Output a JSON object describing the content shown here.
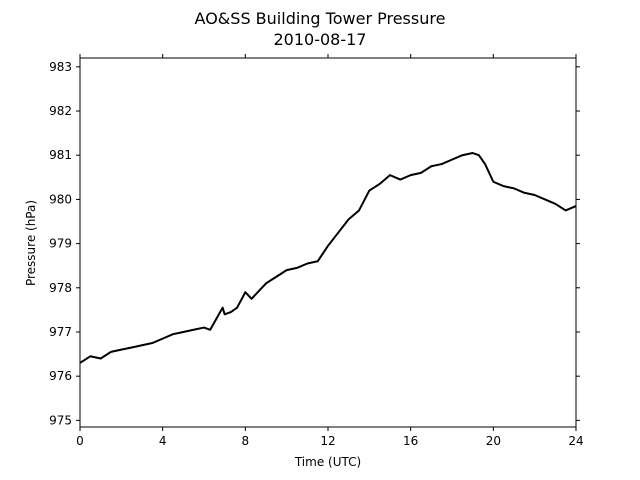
{
  "chart_data": {
    "type": "line",
    "title": "AO&SS Building Tower Pressure",
    "subtitle": "2010-08-17",
    "xlabel": "Time (UTC)",
    "ylabel": "Pressure (hPa)",
    "xlim": [
      0,
      24
    ],
    "ylim": [
      974.85,
      983.2
    ],
    "xticks": [
      0,
      4,
      8,
      12,
      16,
      20,
      24
    ],
    "yticks": [
      975,
      976,
      977,
      978,
      979,
      980,
      981,
      982,
      983
    ],
    "grid": false,
    "line_color": "#000000",
    "series": [
      {
        "x": [
          0,
          0.5,
          1,
          1.5,
          2,
          2.5,
          3,
          3.5,
          4,
          4.5,
          5,
          5.5,
          6,
          6.3,
          6.6,
          6.9,
          7,
          7.3,
          7.6,
          8,
          8.3,
          8.6,
          9,
          9.5,
          10,
          10.5,
          11,
          11.5,
          12,
          12.5,
          13,
          13.5,
          14,
          14.5,
          15,
          15.5,
          16,
          16.5,
          17,
          17.5,
          18,
          18.5,
          19,
          19.3,
          19.6,
          20,
          20.5,
          21,
          21.5,
          22,
          22.5,
          23,
          23.5,
          24
        ],
        "y": [
          976.3,
          976.45,
          976.4,
          976.55,
          976.6,
          976.65,
          976.7,
          976.75,
          976.85,
          976.95,
          977.0,
          977.05,
          977.1,
          977.05,
          977.3,
          977.55,
          977.4,
          977.45,
          977.55,
          977.9,
          977.75,
          977.9,
          978.1,
          978.25,
          978.4,
          978.45,
          978.55,
          978.6,
          978.95,
          979.25,
          979.55,
          979.75,
          980.2,
          980.35,
          980.55,
          980.45,
          980.55,
          980.6,
          980.75,
          980.8,
          980.9,
          981.0,
          981.05,
          981.0,
          980.8,
          980.4,
          980.3,
          980.25,
          980.15,
          980.1,
          980.0,
          979.9,
          979.75,
          979.85
        ]
      }
    ]
  }
}
